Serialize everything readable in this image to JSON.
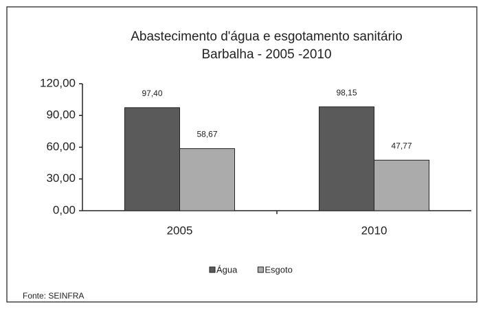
{
  "chart_data": {
    "type": "bar",
    "title": "Abastecimento d'água e esgotamento sanitário",
    "subtitle": "Barbalha - 2005 -2010",
    "categories": [
      "2005",
      "2010"
    ],
    "series": [
      {
        "name": "Água",
        "color": "#5a5a5a",
        "values": [
          97.4,
          98.15
        ],
        "value_labels": [
          "97,40",
          "98,15"
        ]
      },
      {
        "name": "Esgoto",
        "color": "#ababab",
        "values": [
          58.67,
          47.77
        ],
        "value_labels": [
          "58,67",
          "47,77"
        ]
      }
    ],
    "ylim": [
      0,
      120
    ],
    "yticks": [
      {
        "value": 0,
        "label": "0,00"
      },
      {
        "value": 30,
        "label": "30,00"
      },
      {
        "value": 60,
        "label": "60,00"
      },
      {
        "value": 90,
        "label": "90,00"
      },
      {
        "value": 120,
        "label": "120,00"
      }
    ],
    "grid": false,
    "legend": "bottom",
    "source": "Fonte: SEINFRA"
  }
}
